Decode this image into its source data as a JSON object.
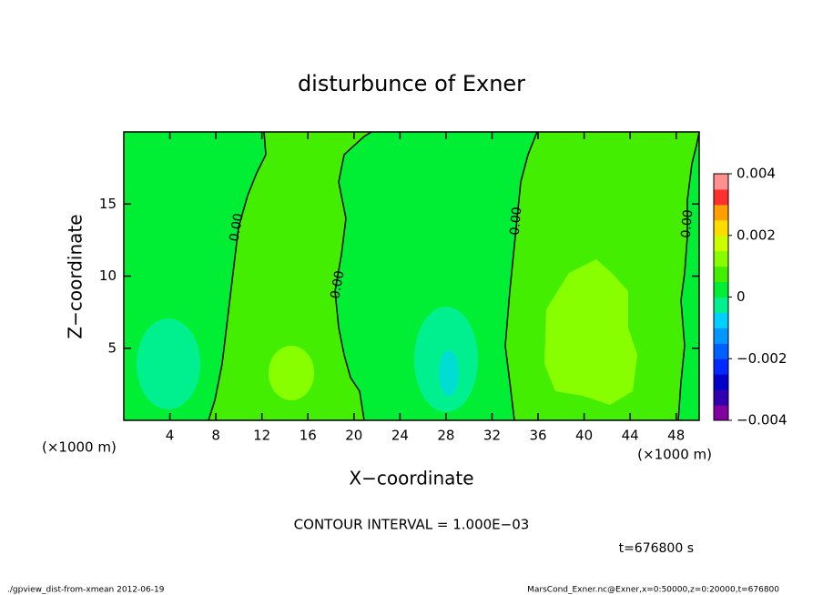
{
  "chart_data": {
    "type": "contour",
    "title": "disturbunce of Exner",
    "x_label": "X−coordinate",
    "y_label": "Z−coordinate",
    "x_unit": "(×1000 m)",
    "y_unit": "(×1000 m)",
    "xlim": [
      0,
      50
    ],
    "ylim": [
      0,
      20
    ],
    "xticks": [
      4,
      8,
      12,
      16,
      20,
      24,
      28,
      32,
      36,
      40,
      44,
      48
    ],
    "yticks": [
      5,
      10,
      15
    ],
    "contour_labels": [
      "0.00",
      "0.00",
      "0.00",
      "0.00"
    ],
    "colorbar": {
      "lim": [
        -0.004,
        0.004
      ],
      "ticks": [
        {
          "value": -0.004,
          "label": "−0.004"
        },
        {
          "value": -0.002,
          "label": "−0.002"
        },
        0,
        0.002,
        0.004
      ],
      "colors": [
        "#8000a0",
        "#3000b0",
        "#0000c8",
        "#0028ff",
        "#0060ff",
        "#0098ff",
        "#00d0ff",
        "#00f090",
        "#00ee33",
        "#44ee00",
        "#88ff00",
        "#ccff00",
        "#ffdd00",
        "#ffa000",
        "#ff3030",
        "#ff9090"
      ]
    },
    "contour_interval": "CONTOUR INTERVAL = 1.000E−03",
    "time_label": "t=676800 s",
    "footer_left": "./gpview_dist-from-xmean  2012-06-19",
    "footer_right": "MarsCond_Exner.nc@Exner,x=0:50000,z=0:20000,t=676800"
  }
}
